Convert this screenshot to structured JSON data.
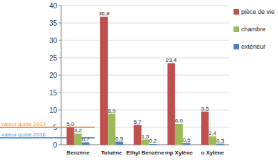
{
  "chart_data": {
    "type": "bar",
    "categories": [
      "Benzène",
      "Toluène",
      "Ethyl Benzène",
      "mp Xylène",
      "o Xylène"
    ],
    "series": [
      {
        "name": "pièce de vie",
        "color": "#C0504D",
        "values": [
          5.0,
          36.8,
          5.7,
          23.4,
          9.5
        ],
        "value_labels": [
          "5,0",
          "36,8",
          "5,7",
          "23,4",
          "9,5"
        ]
      },
      {
        "name": "chambre",
        "color": "#9BBB59",
        "values": [
          3.2,
          8.9,
          1.5,
          6.0,
          2.4
        ],
        "value_labels": [
          "3,2",
          "8,9",
          "1,5",
          "6,0",
          "2,4"
        ]
      },
      {
        "name": "extérieur",
        "color": "#4F81BD",
        "values": [
          0.7,
          0.9,
          0.2,
          0.5,
          0.3
        ],
        "value_labels": [
          "0,7",
          "0,9",
          "0,2",
          "0,5",
          "0,3"
        ]
      }
    ],
    "ylim": [
      0,
      40
    ],
    "yticks": [
      0,
      5,
      10,
      15,
      20,
      25,
      30,
      35,
      40
    ],
    "grid": true,
    "legend": "right",
    "data_labels": true,
    "annotations": [
      {
        "text": "valeur guide 2013",
        "value": 5
      },
      {
        "text": "valeur guide 2016",
        "value": 2
      }
    ]
  }
}
